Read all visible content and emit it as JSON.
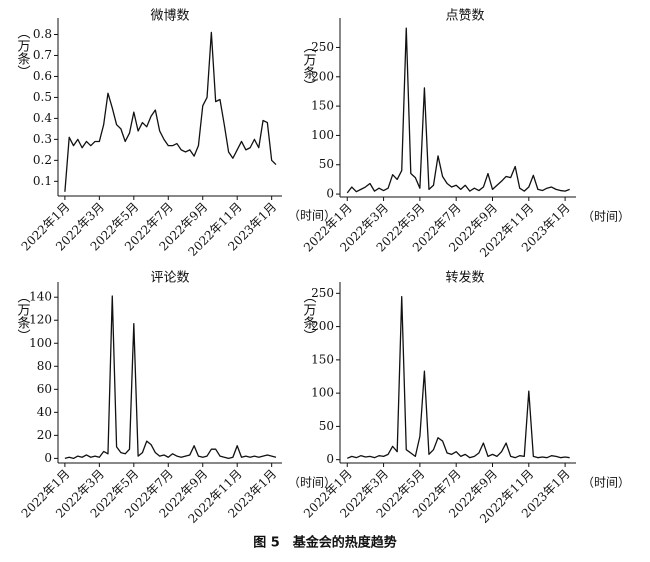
{
  "caption": "图 5　基金会的热度趋势",
  "chart_data": [
    {
      "type": "line",
      "title": "微博数",
      "ylabel": "（万条）",
      "xlabel": "（时间）",
      "x": [
        0,
        0.25,
        0.5,
        0.75,
        1,
        1.25,
        1.5,
        1.75,
        2,
        2.25,
        2.5,
        2.75,
        3,
        3.25,
        3.5,
        3.75,
        4,
        4.25,
        4.5,
        4.75,
        5,
        5.25,
        5.5,
        5.75,
        6,
        6.25,
        6.5,
        6.75,
        7,
        7.25,
        7.5,
        7.75,
        8,
        8.25,
        8.5,
        8.75,
        9,
        9.25,
        9.5,
        9.75,
        10,
        10.25,
        10.5,
        10.75,
        11,
        11.25,
        11.5,
        11.75,
        12,
        12.25
      ],
      "series": [
        {
          "name": "微博数",
          "color": "#111111",
          "values": [
            0.05,
            0.31,
            0.27,
            0.3,
            0.26,
            0.29,
            0.27,
            0.29,
            0.29,
            0.37,
            0.52,
            0.45,
            0.37,
            0.35,
            0.29,
            0.33,
            0.43,
            0.34,
            0.38,
            0.36,
            0.41,
            0.44,
            0.34,
            0.3,
            0.27,
            0.27,
            0.28,
            0.25,
            0.24,
            0.25,
            0.22,
            0.27,
            0.46,
            0.5,
            0.81,
            0.48,
            0.49,
            0.37,
            0.24,
            0.21,
            0.25,
            0.29,
            0.25,
            0.26,
            0.3,
            0.26,
            0.39,
            0.38,
            0.2,
            0.18
          ]
        }
      ],
      "xlim": [
        -0.4,
        12.6
      ],
      "xticks": [
        {
          "value": 0,
          "label": "2022年1月"
        },
        {
          "value": 2,
          "label": "2022年3月"
        },
        {
          "value": 4,
          "label": "2022年5月"
        },
        {
          "value": 6,
          "label": "2022年7月"
        },
        {
          "value": 8,
          "label": "2022年9月"
        },
        {
          "value": 10,
          "label": "2022年11月"
        },
        {
          "value": 12,
          "label": "2023年1月"
        }
      ],
      "ylim": [
        0.03,
        0.85
      ],
      "yticks": [
        0.1,
        0.2,
        0.3,
        0.4,
        0.5,
        0.6,
        0.7,
        0.8
      ],
      "grid": false
    },
    {
      "type": "line",
      "title": "点赞数",
      "ylabel": "（万条）",
      "xlabel": "（时间）",
      "x": [
        0,
        0.25,
        0.5,
        0.75,
        1,
        1.25,
        1.5,
        1.75,
        2,
        2.25,
        2.5,
        2.75,
        3,
        3.25,
        3.5,
        3.75,
        4,
        4.25,
        4.5,
        4.75,
        5,
        5.25,
        5.5,
        5.75,
        6,
        6.25,
        6.5,
        6.75,
        7,
        7.25,
        7.5,
        7.75,
        8,
        8.25,
        8.5,
        8.75,
        9,
        9.25,
        9.5,
        9.75,
        10,
        10.25,
        10.5,
        10.75,
        11,
        11.25,
        11.5,
        11.75,
        12,
        12.25
      ],
      "series": [
        {
          "name": "点赞数",
          "color": "#111111",
          "values": [
            2,
            12,
            4,
            8,
            12,
            18,
            5,
            10,
            6,
            10,
            33,
            25,
            40,
            283,
            35,
            28,
            10,
            181,
            8,
            15,
            65,
            30,
            18,
            12,
            15,
            8,
            15,
            5,
            10,
            6,
            12,
            35,
            8,
            15,
            22,
            30,
            28,
            47,
            10,
            5,
            12,
            32,
            8,
            6,
            10,
            12,
            8,
            6,
            5,
            8
          ]
        }
      ],
      "xlim": [
        -0.4,
        12.6
      ],
      "xticks": [
        {
          "value": 0,
          "label": "2022年1月"
        },
        {
          "value": 2,
          "label": "2022年3月"
        },
        {
          "value": 4,
          "label": "2022年5月"
        },
        {
          "value": 6,
          "label": "2022年7月"
        },
        {
          "value": 8,
          "label": "2022年9月"
        },
        {
          "value": 10,
          "label": "2022年11月"
        },
        {
          "value": 12,
          "label": "2023年1月"
        }
      ],
      "ylim": [
        -5,
        290
      ],
      "yticks": [
        0,
        50,
        100,
        150,
        200,
        250
      ],
      "grid": false
    },
    {
      "type": "line",
      "title": "评论数",
      "ylabel": "（万条）",
      "xlabel": "（时间）",
      "x": [
        0,
        0.25,
        0.5,
        0.75,
        1,
        1.25,
        1.5,
        1.75,
        2,
        2.25,
        2.5,
        2.75,
        3,
        3.25,
        3.5,
        3.75,
        4,
        4.25,
        4.5,
        4.75,
        5,
        5.25,
        5.5,
        5.75,
        6,
        6.25,
        6.5,
        6.75,
        7,
        7.25,
        7.5,
        7.75,
        8,
        8.25,
        8.5,
        8.75,
        9,
        9.25,
        9.5,
        9.75,
        10,
        10.25,
        10.5,
        10.75,
        11,
        11.25,
        11.5,
        11.75,
        12,
        12.25
      ],
      "series": [
        {
          "name": "评论数",
          "color": "#111111",
          "values": [
            0,
            1,
            0,
            2,
            1,
            3,
            1,
            2,
            1,
            6,
            4,
            141,
            10,
            5,
            4,
            8,
            117,
            2,
            5,
            15,
            12,
            5,
            2,
            3,
            1,
            4,
            2,
            1,
            2,
            3,
            11,
            2,
            1,
            2,
            8,
            8,
            2,
            1,
            0,
            1,
            11,
            1,
            2,
            1,
            2,
            1,
            2,
            3,
            2,
            1
          ]
        }
      ],
      "xlim": [
        -0.4,
        12.6
      ],
      "xticks": [
        {
          "value": 0,
          "label": "2022年1月"
        },
        {
          "value": 2,
          "label": "2022年3月"
        },
        {
          "value": 4,
          "label": "2022年5月"
        },
        {
          "value": 6,
          "label": "2022年7月"
        },
        {
          "value": 8,
          "label": "2022年9月"
        },
        {
          "value": 10,
          "label": "2022年11月"
        },
        {
          "value": 12,
          "label": "2023年1月"
        }
      ],
      "ylim": [
        -4,
        148
      ],
      "yticks": [
        0,
        20,
        40,
        60,
        80,
        100,
        120,
        140
      ],
      "grid": false
    },
    {
      "type": "line",
      "title": "转发数",
      "ylabel": "（万条）",
      "xlabel": "（时间）",
      "x": [
        0,
        0.25,
        0.5,
        0.75,
        1,
        1.25,
        1.5,
        1.75,
        2,
        2.25,
        2.5,
        2.75,
        3,
        3.25,
        3.5,
        3.75,
        4,
        4.25,
        4.5,
        4.75,
        5,
        5.25,
        5.5,
        5.75,
        6,
        6.25,
        6.5,
        6.75,
        7,
        7.25,
        7.5,
        7.75,
        8,
        8.25,
        8.5,
        8.75,
        9,
        9.25,
        9.5,
        9.75,
        10,
        10.25,
        10.5,
        10.75,
        11,
        11.25,
        11.5,
        11.75,
        12,
        12.25
      ],
      "series": [
        {
          "name": "转发数",
          "color": "#111111",
          "values": [
            2,
            5,
            3,
            6,
            4,
            5,
            3,
            6,
            5,
            8,
            20,
            12,
            245,
            15,
            10,
            5,
            35,
            133,
            8,
            15,
            33,
            28,
            10,
            8,
            12,
            5,
            8,
            3,
            5,
            10,
            25,
            5,
            8,
            5,
            12,
            25,
            5,
            3,
            6,
            5,
            103,
            5,
            3,
            4,
            3,
            6,
            5,
            3,
            4,
            3
          ]
        }
      ],
      "xlim": [
        -0.4,
        12.6
      ],
      "xticks": [
        {
          "value": 0,
          "label": "2022年1月"
        },
        {
          "value": 2,
          "label": "2022年3月"
        },
        {
          "value": 4,
          "label": "2022年5月"
        },
        {
          "value": 6,
          "label": "2022年7月"
        },
        {
          "value": 8,
          "label": "2022年9月"
        },
        {
          "value": 10,
          "label": "2022年11月"
        },
        {
          "value": 12,
          "label": "2023年1月"
        }
      ],
      "ylim": [
        -5,
        258
      ],
      "yticks": [
        0,
        50,
        100,
        150,
        200,
        250
      ],
      "grid": false
    }
  ]
}
